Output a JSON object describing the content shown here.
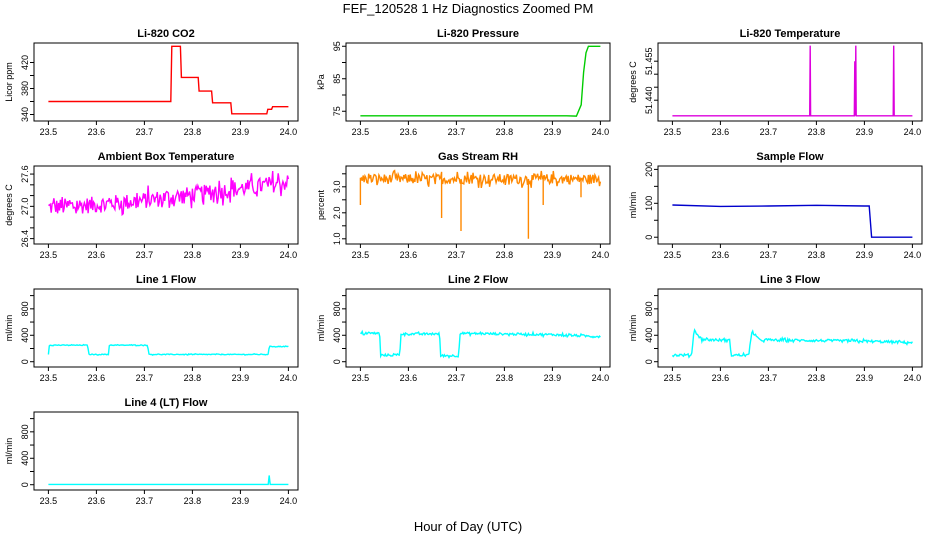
{
  "figure": {
    "title": "FEF_120528 1 Hz Diagnostics Zoomed PM",
    "xlabel": "Hour of Day (UTC)"
  },
  "chart_data": [
    {
      "type": "line",
      "title": "Li-820 CO2",
      "ylabel": "Licor ppm",
      "color": "#ff0000",
      "xlim": [
        23.47,
        24.02
      ],
      "ylim": [
        330,
        450
      ],
      "xticks": [
        23.5,
        23.6,
        23.7,
        23.8,
        23.9,
        24.0
      ],
      "yticks": [
        340,
        360,
        380,
        400,
        420
      ],
      "yticklabels": [
        "340",
        "",
        "380",
        "",
        "420"
      ],
      "x": [
        23.5,
        23.755,
        23.757,
        23.775,
        23.777,
        23.812,
        23.814,
        23.84,
        23.842,
        23.88,
        23.882,
        23.955,
        23.957,
        23.965,
        23.967,
        24.0
      ],
      "y": [
        360,
        360,
        445,
        445,
        397,
        397,
        376,
        376,
        358,
        358,
        341,
        341,
        348,
        348,
        352,
        352
      ]
    },
    {
      "type": "line",
      "title": "Li-820 Pressure",
      "ylabel": "kPa",
      "color": "#00cc00",
      "xlim": [
        23.47,
        24.02
      ],
      "ylim": [
        72,
        96
      ],
      "xticks": [
        23.5,
        23.6,
        23.7,
        23.8,
        23.9,
        24.0
      ],
      "yticks": [
        75,
        80,
        85,
        90,
        95
      ],
      "yticklabels": [
        "75",
        "",
        "85",
        "",
        "95"
      ],
      "x": [
        23.5,
        23.93,
        23.95,
        23.96,
        23.965,
        23.97,
        23.975,
        24.0
      ],
      "y": [
        73.6,
        73.6,
        73.5,
        77,
        87,
        93,
        95,
        95
      ]
    },
    {
      "type": "line",
      "title": "Li-820 Temperature",
      "ylabel": "degrees C",
      "color": "#dd00dd",
      "xlim": [
        23.47,
        24.02
      ],
      "ylim": [
        51.432,
        51.462
      ],
      "xticks": [
        23.5,
        23.6,
        23.7,
        23.8,
        23.9,
        24.0
      ],
      "yticks": [
        51.44,
        51.445,
        51.45,
        51.455
      ],
      "yticklabels": [
        "51.440",
        "",
        "",
        "51.455"
      ],
      "x": [
        23.5,
        23.786,
        23.787,
        23.788,
        23.879,
        23.88,
        23.881,
        23.882,
        23.883,
        23.96,
        23.961,
        23.962,
        24.0
      ],
      "y": [
        51.434,
        51.434,
        51.461,
        51.434,
        51.434,
        51.455,
        51.434,
        51.461,
        51.434,
        51.434,
        51.461,
        51.434,
        51.434
      ]
    },
    {
      "type": "line",
      "title": "Ambient Box Temperature",
      "ylabel": "degrees C",
      "color": "#ff00ff",
      "xlim": [
        23.47,
        24.02
      ],
      "ylim": [
        26.3,
        27.75
      ],
      "xticks": [
        23.5,
        23.6,
        23.7,
        23.8,
        23.9,
        24.0
      ],
      "yticks": [
        26.4,
        26.6,
        26.8,
        27.0,
        27.2,
        27.4,
        27.6
      ],
      "yticklabels": [
        "26.4",
        "",
        "",
        "27.0",
        "",
        "",
        "27.6"
      ],
      "x": [
        23.5,
        23.6,
        23.7,
        23.8,
        23.9,
        24.0
      ],
      "y": [
        26.98,
        27.03,
        27.11,
        27.22,
        27.33,
        27.45
      ],
      "noise": 0.28
    },
    {
      "type": "line",
      "title": "Gas Stream RH",
      "ylabel": "percent",
      "color": "#ff8800",
      "xlim": [
        23.47,
        24.02
      ],
      "ylim": [
        0.8,
        3.8
      ],
      "xticks": [
        23.5,
        23.6,
        23.7,
        23.8,
        23.9,
        24.0
      ],
      "yticks": [
        1.0,
        1.5,
        2.0,
        2.5,
        3.0,
        3.5
      ],
      "yticklabels": [
        "1.0",
        "",
        "2.0",
        "",
        "3.0",
        ""
      ],
      "x": [
        23.5,
        24.0
      ],
      "y": [
        3.3,
        3.3
      ],
      "noise": 0.35,
      "dips": [
        [
          23.5,
          2.3
        ],
        [
          23.67,
          1.8
        ],
        [
          23.71,
          1.3
        ],
        [
          23.85,
          1.0
        ],
        [
          23.88,
          2.3
        ],
        [
          23.96,
          2.6
        ]
      ]
    },
    {
      "type": "line",
      "title": "Sample Flow",
      "ylabel": "ml/min",
      "color": "#0000cc",
      "xlim": [
        23.47,
        24.02
      ],
      "ylim": [
        -20,
        210
      ],
      "xticks": [
        23.5,
        23.6,
        23.7,
        23.8,
        23.9,
        24.0
      ],
      "yticks": [
        0,
        50,
        100,
        150,
        200
      ],
      "yticklabels": [
        "0",
        "",
        "100",
        "",
        "200"
      ],
      "x": [
        23.5,
        23.6,
        23.7,
        23.8,
        23.9,
        23.91,
        23.915,
        24.0
      ],
      "y": [
        95,
        91,
        92,
        94,
        92,
        92,
        0,
        0
      ]
    },
    {
      "type": "line",
      "title": "Line 1 Flow",
      "ylabel": "ml/min",
      "color": "#00ffff",
      "xlim": [
        23.47,
        24.02
      ],
      "ylim": [
        -80,
        1100
      ],
      "xticks": [
        23.5,
        23.6,
        23.7,
        23.8,
        23.9,
        24.0
      ],
      "yticks": [
        0,
        200,
        400,
        600,
        800,
        1000
      ],
      "yticklabels": [
        "0",
        "",
        "400",
        "",
        "800",
        ""
      ],
      "x": [
        23.5,
        23.502,
        23.582,
        23.584,
        23.625,
        23.627,
        23.707,
        23.709,
        23.958,
        23.96,
        24.0
      ],
      "y": [
        110,
        250,
        250,
        110,
        110,
        250,
        250,
        110,
        110,
        230,
        230
      ],
      "noise": 10
    },
    {
      "type": "line",
      "title": "Line 2 Flow",
      "ylabel": "ml/min",
      "color": "#00ffff",
      "xlim": [
        23.47,
        24.02
      ],
      "ylim": [
        -80,
        1100
      ],
      "xticks": [
        23.5,
        23.6,
        23.7,
        23.8,
        23.9,
        24.0
      ],
      "yticks": [
        0,
        200,
        400,
        600,
        800,
        1000
      ],
      "yticklabels": [
        "0",
        "",
        "400",
        "",
        "800",
        ""
      ],
      "x": [
        23.5,
        23.54,
        23.542,
        23.582,
        23.584,
        23.665,
        23.667,
        23.705,
        23.707,
        23.8,
        23.9,
        24.0
      ],
      "y": [
        430,
        430,
        100,
        100,
        420,
        420,
        90,
        90,
        430,
        420,
        410,
        380
      ],
      "noise": 30
    },
    {
      "type": "line",
      "title": "Line 3 Flow",
      "ylabel": "ml/min",
      "color": "#00ffff",
      "xlim": [
        23.47,
        24.02
      ],
      "ylim": [
        -80,
        1100
      ],
      "xticks": [
        23.5,
        23.6,
        23.7,
        23.8,
        23.9,
        24.0
      ],
      "yticks": [
        0,
        200,
        400,
        600,
        800,
        1000
      ],
      "yticklabels": [
        "0",
        "",
        "400",
        "",
        "800",
        ""
      ],
      "x": [
        23.5,
        23.54,
        23.545,
        23.56,
        23.62,
        23.622,
        23.66,
        23.665,
        23.68,
        23.8,
        23.9,
        24.0
      ],
      "y": [
        100,
        100,
        480,
        340,
        320,
        100,
        100,
        470,
        330,
        320,
        310,
        290
      ],
      "noise": 35
    },
    {
      "type": "line",
      "title": "Line 4 (LT) Flow",
      "ylabel": "ml/min",
      "color": "#00ffff",
      "xlim": [
        23.47,
        24.02
      ],
      "ylim": [
        -80,
        1100
      ],
      "xticks": [
        23.5,
        23.6,
        23.7,
        23.8,
        23.9,
        24.0
      ],
      "yticks": [
        0,
        200,
        400,
        600,
        800,
        1000
      ],
      "yticklabels": [
        "0",
        "",
        "400",
        "",
        "800",
        ""
      ],
      "x": [
        23.5,
        23.958,
        23.96,
        23.962,
        24.0
      ],
      "y": [
        5,
        5,
        140,
        5,
        5
      ]
    }
  ]
}
